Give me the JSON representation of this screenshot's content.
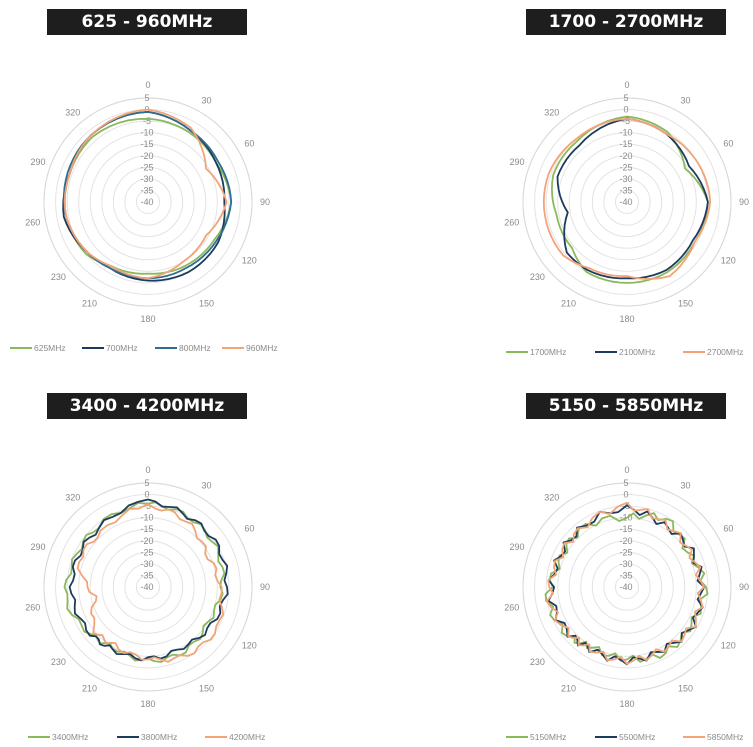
{
  "chart_data": [
    {
      "type": "radar",
      "title": "625 - 960MHz",
      "angle_labels": [
        "0",
        "30",
        "60",
        "90",
        "120",
        "150",
        "180",
        "210",
        "230",
        "260",
        "290",
        "320"
      ],
      "radial_labels": [
        "5",
        "0",
        "-5",
        "-10",
        "-15",
        "-20",
        "-25",
        "-30",
        "-35",
        "-40"
      ],
      "rlim": [
        -40,
        5
      ],
      "legend_position": "bottom",
      "series": [
        {
          "name": "625MHz",
          "color": "#8cb85c",
          "angles": [
            0,
            30,
            60,
            90,
            120,
            150,
            180,
            210,
            230,
            260,
            290,
            320
          ],
          "values": [
            -4,
            -5,
            -6,
            -4,
            -7,
            -8,
            -9,
            -8,
            -5,
            -4,
            -4,
            -3
          ]
        },
        {
          "name": "700MHz",
          "color": "#1e3a5f",
          "angles": [
            0,
            30,
            60,
            90,
            120,
            150,
            180,
            210,
            230,
            260,
            290,
            320
          ],
          "values": [
            -1,
            -4,
            -6,
            -7,
            -5,
            -5,
            -6,
            -7,
            -6,
            -3,
            -4,
            -2
          ]
        },
        {
          "name": "800MHz",
          "color": "#2f6e8f",
          "angles": [
            0,
            30,
            60,
            90,
            120,
            150,
            180,
            210,
            230,
            260,
            290,
            320
          ],
          "values": [
            -1,
            -4,
            -5,
            -4,
            -6,
            -7,
            -7,
            -7,
            -6,
            -4,
            -3,
            -2
          ]
        },
        {
          "name": "960MHz",
          "color": "#f2a478",
          "angles": [
            0,
            30,
            60,
            90,
            120,
            150,
            180,
            210,
            230,
            260,
            290,
            320
          ],
          "values": [
            0,
            -3,
            -11,
            -6,
            -11,
            -10,
            -7,
            -8,
            -6,
            -4,
            -4,
            -2
          ]
        }
      ]
    },
    {
      "type": "radar",
      "title": "1700 - 2700MHz",
      "angle_labels": [
        "0",
        "30",
        "60",
        "90",
        "120",
        "150",
        "180",
        "210",
        "230",
        "260",
        "290",
        "320"
      ],
      "radial_labels": [
        "5",
        "0",
        "-5",
        "-10",
        "-15",
        "-20",
        "-25",
        "-30",
        "-35",
        "-40"
      ],
      "rlim": [
        -40,
        5
      ],
      "legend_position": "bottom",
      "series": [
        {
          "name": "1700MHz",
          "color": "#8cb85c",
          "angles": [
            0,
            30,
            60,
            90,
            120,
            150,
            180,
            210,
            230,
            260,
            290,
            320
          ],
          "values": [
            -3,
            -5,
            -11,
            -5,
            -6,
            -5,
            -5,
            -5,
            -9,
            -9,
            -6,
            -6
          ]
        },
        {
          "name": "2100MHz",
          "color": "#1e3a5f",
          "angles": [
            0,
            30,
            60,
            90,
            120,
            150,
            180,
            210,
            230,
            260,
            290,
            320
          ],
          "values": [
            -4,
            -6,
            -9,
            -5,
            -7,
            -6,
            -7,
            -6,
            -6,
            -14,
            -8,
            -8
          ]
        },
        {
          "name": "2700MHz",
          "color": "#f2a478",
          "angles": [
            0,
            30,
            60,
            90,
            120,
            150,
            180,
            210,
            230,
            260,
            290,
            320
          ],
          "values": [
            -4,
            -6,
            -5,
            -4,
            -6,
            -3,
            -8,
            -7,
            -4,
            -4,
            -4,
            -5
          ]
        }
      ]
    },
    {
      "type": "radar",
      "title": "3400 - 4200MHz",
      "angle_labels": [
        "0",
        "30",
        "60",
        "90",
        "120",
        "150",
        "180",
        "210",
        "230",
        "260",
        "290",
        "320"
      ],
      "radial_labels": [
        "5",
        "0",
        "-5",
        "-10",
        "-15",
        "-20",
        "-25",
        "-30",
        "-35",
        "-40"
      ],
      "rlim": [
        -40,
        5
      ],
      "legend_position": "bottom",
      "series": [
        {
          "name": "3400MHz",
          "color": "#8cb85c",
          "angles": [
            0,
            30,
            60,
            90,
            120,
            150,
            180,
            210,
            230,
            260,
            290,
            320
          ],
          "values": [
            -4,
            -5,
            -6,
            -8,
            -10,
            -8,
            -8,
            -10,
            -8,
            -4,
            -6,
            -6
          ]
        },
        {
          "name": "3800MHz",
          "color": "#1e3a5f",
          "angles": [
            0,
            30,
            60,
            90,
            120,
            150,
            180,
            210,
            230,
            260,
            290,
            320
          ],
          "values": [
            -3,
            -5,
            -5,
            -6,
            -8,
            -10,
            -9,
            -9,
            -8,
            -7,
            -7,
            -7
          ]
        },
        {
          "name": "4200MHz",
          "color": "#f2a478",
          "angles": [
            0,
            30,
            60,
            90,
            120,
            150,
            180,
            210,
            230,
            260,
            290,
            320
          ],
          "values": [
            -5,
            -7,
            -11,
            -9,
            -5,
            -6,
            -9,
            -11,
            -10,
            -17,
            -8,
            -9
          ]
        }
      ]
    },
    {
      "type": "radar",
      "title": "5150 - 5850MHz",
      "angle_labels": [
        "0",
        "30",
        "60",
        "90",
        "120",
        "150",
        "180",
        "210",
        "230",
        "260",
        "290",
        "320"
      ],
      "radial_labels": [
        "5",
        "0",
        "-5",
        "-10",
        "-15",
        "-20",
        "-25",
        "-30",
        "-35",
        "-40"
      ],
      "rlim": [
        -40,
        5
      ],
      "legend_position": "bottom",
      "series": [
        {
          "name": "5150MHz",
          "color": "#8cb85c",
          "angles": [
            0,
            30,
            60,
            90,
            120,
            150,
            180,
            210,
            230,
            260,
            290,
            320
          ],
          "values": [
            -10,
            -6,
            -10,
            -6,
            -8,
            -7,
            -9,
            -10,
            -7,
            -5,
            -9,
            -8
          ]
        },
        {
          "name": "5500MHz",
          "color": "#1e3a5f",
          "angles": [
            0,
            30,
            60,
            90,
            120,
            150,
            180,
            210,
            230,
            260,
            290,
            320
          ],
          "values": [
            -6,
            -9,
            -8,
            -8,
            -7,
            -9,
            -8,
            -9,
            -8,
            -7,
            -8,
            -8
          ]
        },
        {
          "name": "5850MHz",
          "color": "#f2a478",
          "angles": [
            0,
            30,
            60,
            90,
            120,
            150,
            180,
            210,
            230,
            260,
            290,
            320
          ],
          "values": [
            -5,
            -8,
            -9,
            -8,
            -7,
            -9,
            -8,
            -9,
            -8,
            -6,
            -8,
            -8
          ]
        }
      ]
    }
  ]
}
